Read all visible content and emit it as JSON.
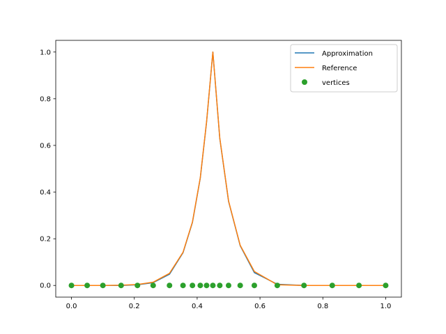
{
  "chart_data": {
    "type": "line",
    "title": "",
    "xlabel": "",
    "ylabel": "",
    "xlim": [
      -0.05,
      1.05
    ],
    "ylim": [
      -0.05,
      1.05
    ],
    "xticks": [
      0.0,
      0.2,
      0.4,
      0.6,
      0.8,
      1.0
    ],
    "yticks": [
      0.0,
      0.2,
      0.4,
      0.6,
      0.8,
      1.0
    ],
    "xtick_labels": [
      "0.0",
      "0.2",
      "0.4",
      "0.6",
      "0.8",
      "1.0"
    ],
    "ytick_labels": [
      "0.0",
      "0.2",
      "0.4",
      "0.6",
      "0.8",
      "1.0"
    ],
    "grid": false,
    "legend_position": "top-right",
    "series": [
      {
        "name": "Approximation",
        "kind": "line",
        "color": "#1f77b4",
        "x": [
          0.0,
          0.05,
          0.1,
          0.158,
          0.21,
          0.26,
          0.312,
          0.355,
          0.385,
          0.41,
          0.43,
          0.45,
          0.472,
          0.5,
          0.537,
          0.582,
          0.655,
          0.74,
          0.83,
          0.915,
          1.0
        ],
        "y": [
          0.0,
          0.0,
          0.0,
          0.0,
          0.003,
          0.012,
          0.048,
          0.14,
          0.27,
          0.46,
          0.7,
          1.0,
          0.63,
          0.36,
          0.17,
          0.055,
          0.005,
          0.0,
          0.0,
          0.0,
          0.0
        ]
      },
      {
        "name": "Reference",
        "kind": "line",
        "color": "#ff7f0e",
        "x": [
          0.0,
          0.05,
          0.1,
          0.158,
          0.21,
          0.26,
          0.312,
          0.355,
          0.385,
          0.41,
          0.43,
          0.45,
          0.472,
          0.5,
          0.537,
          0.582,
          0.655,
          0.74,
          0.83,
          0.915,
          1.0
        ],
        "y": [
          0.0,
          0.0,
          0.0,
          0.001,
          0.004,
          0.014,
          0.052,
          0.142,
          0.272,
          0.462,
          0.702,
          1.0,
          0.632,
          0.362,
          0.172,
          0.06,
          0.003,
          0.0,
          0.0,
          0.0,
          0.0
        ]
      },
      {
        "name": "vertices",
        "kind": "scatter",
        "color": "#2ca02c",
        "x": [
          0.0,
          0.05,
          0.1,
          0.158,
          0.21,
          0.26,
          0.312,
          0.355,
          0.385,
          0.41,
          0.43,
          0.45,
          0.472,
          0.5,
          0.537,
          0.582,
          0.655,
          0.74,
          0.83,
          0.915,
          1.0
        ],
        "y": [
          0,
          0,
          0,
          0,
          0,
          0,
          0,
          0,
          0,
          0,
          0,
          0,
          0,
          0,
          0,
          0,
          0,
          0,
          0,
          0,
          0
        ]
      }
    ]
  }
}
